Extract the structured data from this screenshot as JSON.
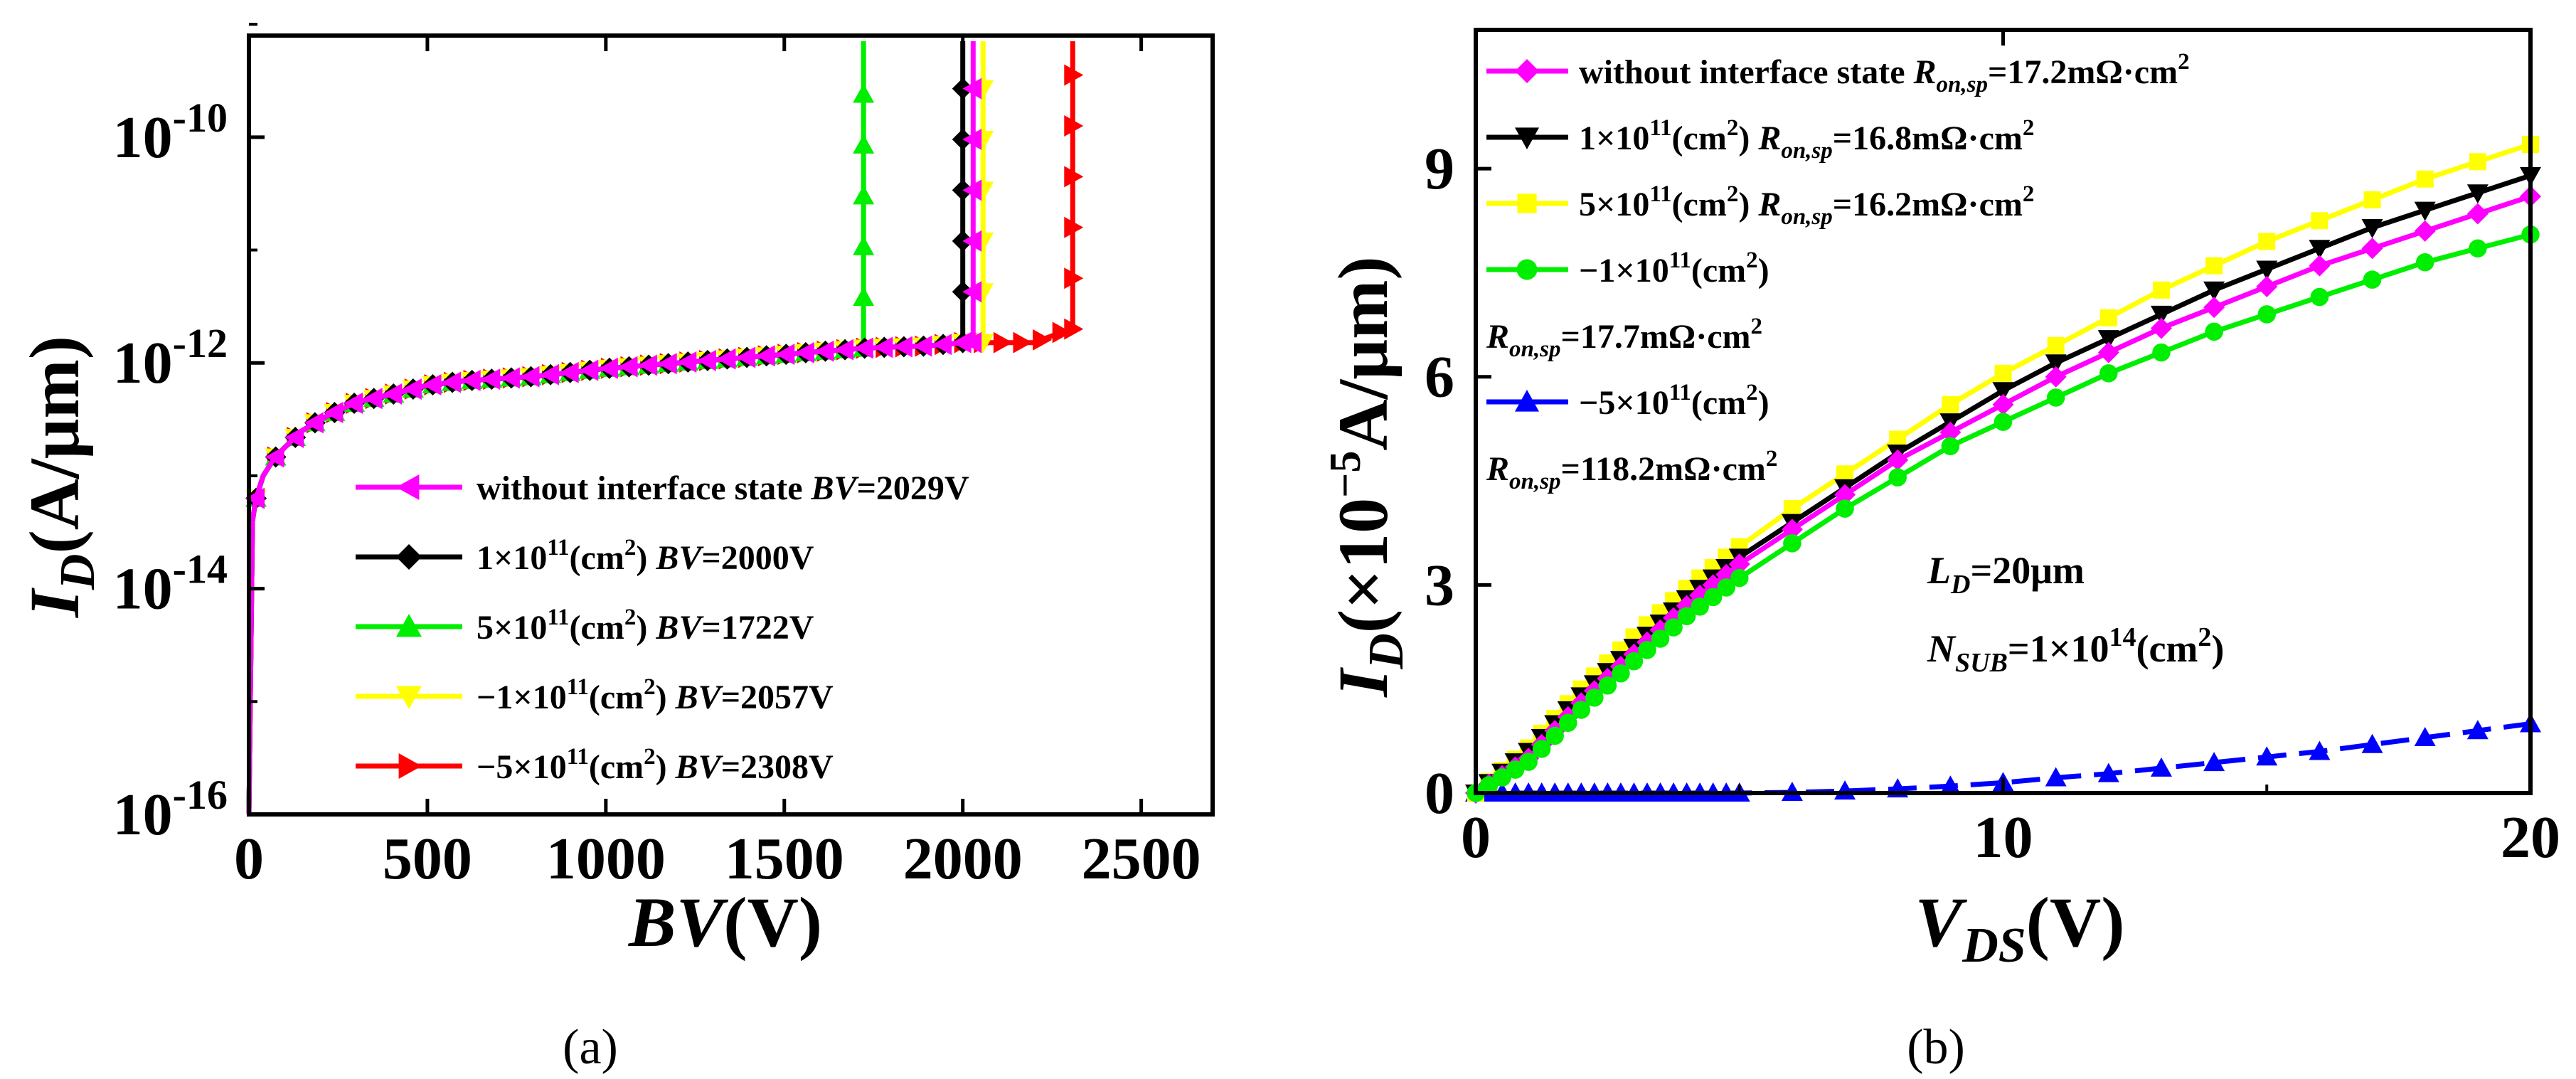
{
  "chart_data": [
    {
      "type": "line",
      "panel": "a",
      "caption": "(a)",
      "xlabel": {
        "main": "BV",
        "unit": "(V)"
      },
      "ylabel": {
        "main": "I",
        "sub": "D",
        "unit": "(A/μm)"
      },
      "yscale": "log",
      "xlim": [
        0,
        2700
      ],
      "ylim_exp": [
        -16,
        -9.1
      ],
      "xticks": [
        0,
        500,
        1000,
        1500,
        2000,
        2500
      ],
      "xtick_labels": [
        "0",
        "500",
        "1000",
        "1500",
        "2000",
        "2500"
      ],
      "yticks_exp": [
        -16,
        -14,
        -12,
        -10
      ],
      "ytick_labels": [
        {
          "base": "10",
          "exp": "-16"
        },
        {
          "base": "10",
          "exp": "-14"
        },
        {
          "base": "10",
          "exp": "-12"
        },
        {
          "base": "10",
          "exp": "-10"
        }
      ],
      "legend_position": "bottom-right",
      "series": [
        {
          "name": "without interface state",
          "label_parts": [
            "without interface state ",
            "",
            "",
            "BV",
            "=2029V"
          ],
          "bv": 2029,
          "color": "#ff00ff",
          "marker": "triangle-left"
        },
        {
          "name": "1×10^11(cm^2)",
          "label_parts": [
            "1×10",
            "11",
            "(cm",
            "2",
            ") ",
            "BV",
            "=2000V"
          ],
          "bv": 2000,
          "color": "#000000",
          "marker": "diamond"
        },
        {
          "name": "5×10^11(cm^2)",
          "label_parts": [
            "5×10",
            "11",
            "(cm",
            "2",
            ") ",
            "BV",
            "=1722V"
          ],
          "bv": 1722,
          "color": "#00ee00",
          "marker": "triangle-up"
        },
        {
          "name": "−1×10^11(cm^2)",
          "label_parts": [
            "−1×10",
            "11",
            "(cm",
            "2",
            ") ",
            "BV",
            "=2057V"
          ],
          "bv": 2057,
          "color": "#ffff00",
          "marker": "triangle-down"
        },
        {
          "name": "−5×10^11(cm^2)",
          "label_parts": [
            "−5×10",
            "11",
            "(cm",
            "2",
            ") ",
            "BV",
            "=2308V"
          ],
          "bv": 2308,
          "color": "#ff0000",
          "marker": "triangle-right"
        }
      ],
      "common_leakage_curve": {
        "x": [
          0,
          10,
          20,
          40,
          70,
          100,
          150,
          200,
          300,
          400,
          500,
          600,
          800,
          1000,
          1200,
          1400,
          1600,
          1722,
          1800,
          1900,
          2000,
          2100,
          2200,
          2300
        ],
        "log10_y": [
          -16,
          -13.4,
          -13.2,
          -13.0,
          -12.85,
          -12.75,
          -12.6,
          -12.5,
          -12.35,
          -12.28,
          -12.2,
          -12.16,
          -12.12,
          -12.05,
          -12.0,
          -11.95,
          -11.9,
          -11.87,
          -11.86,
          -11.85,
          -11.82,
          -11.82,
          -11.82,
          -11.7
        ]
      }
    },
    {
      "type": "line",
      "panel": "b",
      "caption": "(b)",
      "xlabel": {
        "main": "V",
        "sub": "DS",
        "unit": "(V)"
      },
      "ylabel": {
        "main": "I",
        "sub": "D",
        "unit": "(×10",
        "exp": "−5",
        "unit2": "A/μm)"
      },
      "xlim": [
        0,
        20
      ],
      "ylim": [
        0,
        11
      ],
      "xticks": [
        0,
        10,
        20
      ],
      "xtick_labels": [
        "0",
        "10",
        "20"
      ],
      "yticks": [
        0,
        3,
        6,
        9
      ],
      "ytick_labels": [
        "0",
        "3",
        "6",
        "9"
      ],
      "legend_position": "top-left",
      "x": [
        0,
        1,
        2,
        3,
        4,
        5,
        6,
        7,
        8,
        9,
        10,
        11,
        12,
        13,
        14,
        15,
        16,
        17,
        18,
        19,
        20
      ],
      "series": [
        {
          "name": "without interface state",
          "ron": "17.2mΩ·cm",
          "color": "#ff00ff",
          "marker": "diamond",
          "values": [
            0,
            0.5,
            1.3,
            2.0,
            2.7,
            3.3,
            3.8,
            4.3,
            4.8,
            5.2,
            5.6,
            6.0,
            6.35,
            6.7,
            7.0,
            7.3,
            7.6,
            7.85,
            8.1,
            8.35,
            8.6
          ]
        },
        {
          "name": "1×10^11(cm^2)",
          "ron": "16.8mΩ·cm",
          "color": "#000000",
          "marker": "triangle-down",
          "values": [
            0,
            0.6,
            1.4,
            2.1,
            2.8,
            3.4,
            3.9,
            4.4,
            4.9,
            5.35,
            5.8,
            6.2,
            6.55,
            6.9,
            7.25,
            7.55,
            7.85,
            8.15,
            8.4,
            8.65,
            8.9
          ]
        },
        {
          "name": "5×10^11(cm^2)",
          "ron": "16.2mΩ·cm",
          "color": "#ffff00",
          "marker": "square",
          "values": [
            0,
            0.65,
            1.5,
            2.25,
            2.95,
            3.55,
            4.1,
            4.6,
            5.1,
            5.6,
            6.05,
            6.45,
            6.85,
            7.25,
            7.6,
            7.95,
            8.25,
            8.55,
            8.85,
            9.1,
            9.35
          ]
        },
        {
          "name": "−1×10^11(cm^2)",
          "ron": "17.7mΩ·cm",
          "color": "#00ee00",
          "marker": "circle",
          "values": [
            0,
            0.45,
            1.2,
            1.9,
            2.55,
            3.1,
            3.6,
            4.1,
            4.55,
            5.0,
            5.35,
            5.7,
            6.05,
            6.35,
            6.65,
            6.9,
            7.15,
            7.4,
            7.65,
            7.85,
            8.05
          ]
        },
        {
          "name": "−5×10^11(cm^2)",
          "ron": "118.2mΩ·cm",
          "color": "#0000ff",
          "marker": "triangle-up",
          "dashed": true,
          "values": [
            0,
            0,
            0,
            0,
            0,
            0,
            0.01,
            0.03,
            0.06,
            0.1,
            0.15,
            0.22,
            0.28,
            0.36,
            0.44,
            0.52,
            0.6,
            0.7,
            0.8,
            0.9,
            1.0
          ]
        }
      ],
      "legend_lines": [
        {
          "parts": [
            "without interface state ",
            "R",
            "on,sp",
            "=17.2mΩ·cm",
            "2"
          ],
          "marker": "diamond",
          "color": "#ff00ff"
        },
        {
          "parts": [
            "1×10",
            "11",
            "(cm",
            "2",
            ") ",
            "R",
            "on,sp",
            "=16.8mΩ·cm",
            "2"
          ],
          "marker": "triangle-down",
          "color": "#000000"
        },
        {
          "parts": [
            "5×10",
            "11",
            "(cm",
            "2",
            ") ",
            "R",
            "on,sp",
            "=16.2mΩ·cm",
            "2"
          ],
          "marker": "square",
          "color": "#ffff00"
        },
        {
          "parts": [
            "−1×10",
            "11",
            "(cm",
            "2",
            ")"
          ],
          "marker": "circle",
          "color": "#00ee00"
        },
        {
          "parts": [
            "R",
            "on,sp",
            "=17.7mΩ·cm",
            "2"
          ],
          "marker": "",
          "color": ""
        },
        {
          "parts": [
            "−5×10",
            "11",
            "(cm",
            "2",
            ")"
          ],
          "marker": "triangle-up",
          "color": "#0000ff"
        },
        {
          "parts": [
            "R",
            "on,sp",
            "=118.2mΩ·cm",
            "2"
          ],
          "marker": "",
          "color": ""
        }
      ],
      "annotations": [
        {
          "parts": [
            "L",
            "D",
            "=20μm"
          ]
        },
        {
          "parts": [
            "N",
            "SUB",
            "=1×10",
            "14",
            "(cm",
            "2",
            ")"
          ]
        }
      ]
    }
  ]
}
